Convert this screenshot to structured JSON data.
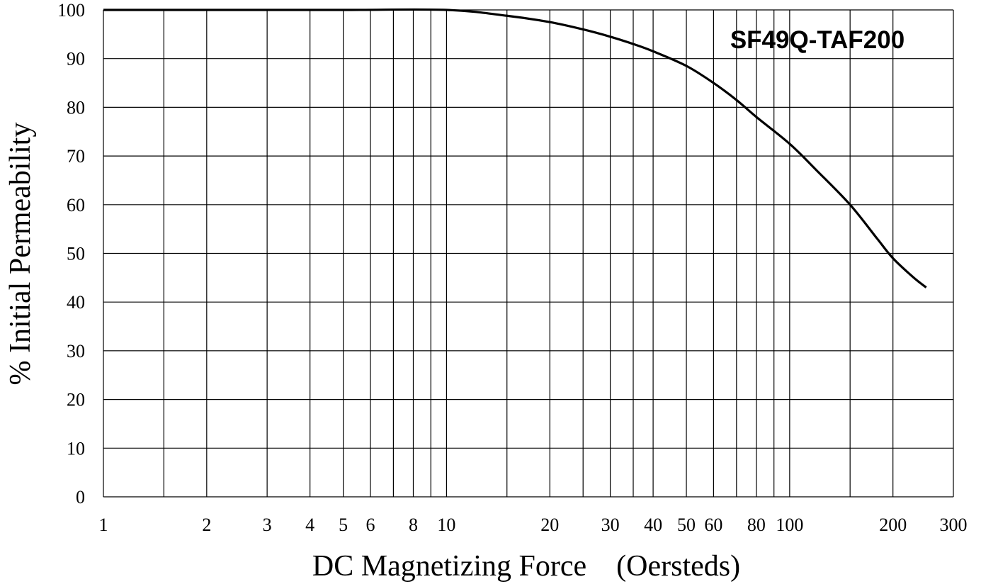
{
  "chart_data": {
    "type": "line",
    "title": "",
    "xlabel": "DC Magnetizing Force    (Oersteds)",
    "ylabel": "% Initial Permeability",
    "annotation": "SF49Q-TAF200",
    "x_scale": "log",
    "xlim": [
      1,
      300
    ],
    "ylim": [
      0,
      100
    ],
    "x_ticks": [
      1,
      2,
      3,
      4,
      5,
      6,
      8,
      10,
      20,
      30,
      40,
      50,
      60,
      80,
      100,
      200,
      300
    ],
    "x_tick_labels": [
      "1",
      "2",
      "3",
      "4",
      "5",
      "6",
      "8",
      "10",
      "20",
      "30",
      "40",
      "50",
      "60",
      "80",
      "100",
      "200",
      "300"
    ],
    "x_gridlines": [
      1,
      1.5,
      2,
      3,
      4,
      5,
      6,
      7,
      8,
      9,
      10,
      15,
      20,
      25,
      30,
      35,
      40,
      50,
      60,
      70,
      80,
      90,
      100,
      150,
      200,
      300
    ],
    "y_ticks": [
      0,
      10,
      20,
      30,
      40,
      50,
      60,
      70,
      80,
      90,
      100
    ],
    "y_tick_labels": [
      "0",
      "10",
      "20",
      "30",
      "40",
      "50",
      "60",
      "70",
      "80",
      "90",
      "100"
    ],
    "grid": true,
    "legend": "none",
    "series": [
      {
        "color": "#000000",
        "x": [
          1,
          2,
          5,
          10,
          15,
          20,
          25,
          30,
          35,
          40,
          50,
          60,
          70,
          80,
          100,
          120,
          150,
          180,
          200,
          230,
          250
        ],
        "y": [
          100,
          100,
          100,
          100,
          98.8,
          97.5,
          96,
          94.5,
          93,
          91.5,
          88.5,
          85,
          81.5,
          78,
          72.5,
          67,
          60,
          53,
          49,
          45,
          43
        ]
      }
    ]
  }
}
